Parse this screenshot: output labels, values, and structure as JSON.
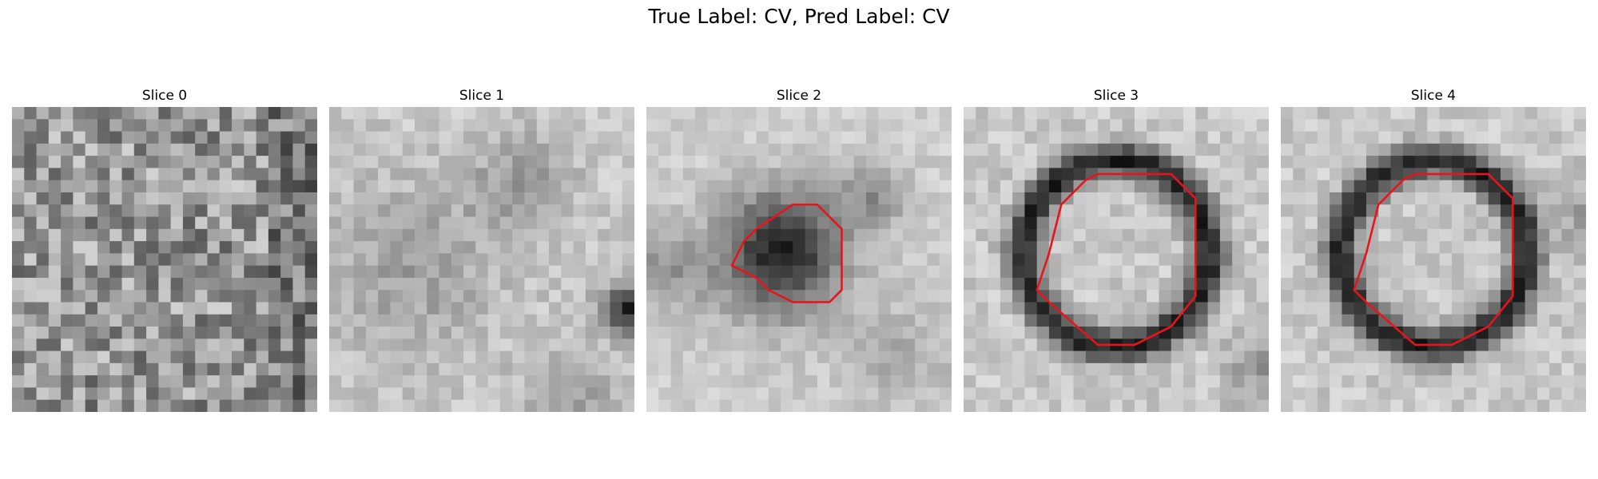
{
  "figure": {
    "title": "True Label: CV, Pred Label: CV",
    "slices": [
      {
        "label": "Slice 0",
        "contour": false
      },
      {
        "label": "Slice 1",
        "contour": false
      },
      {
        "label": "Slice 2",
        "contour": true
      },
      {
        "label": "Slice 3",
        "contour": true
      },
      {
        "label": "Slice 4",
        "contour": true
      }
    ],
    "contour_color": "#e8141c",
    "colormap": "gray"
  }
}
